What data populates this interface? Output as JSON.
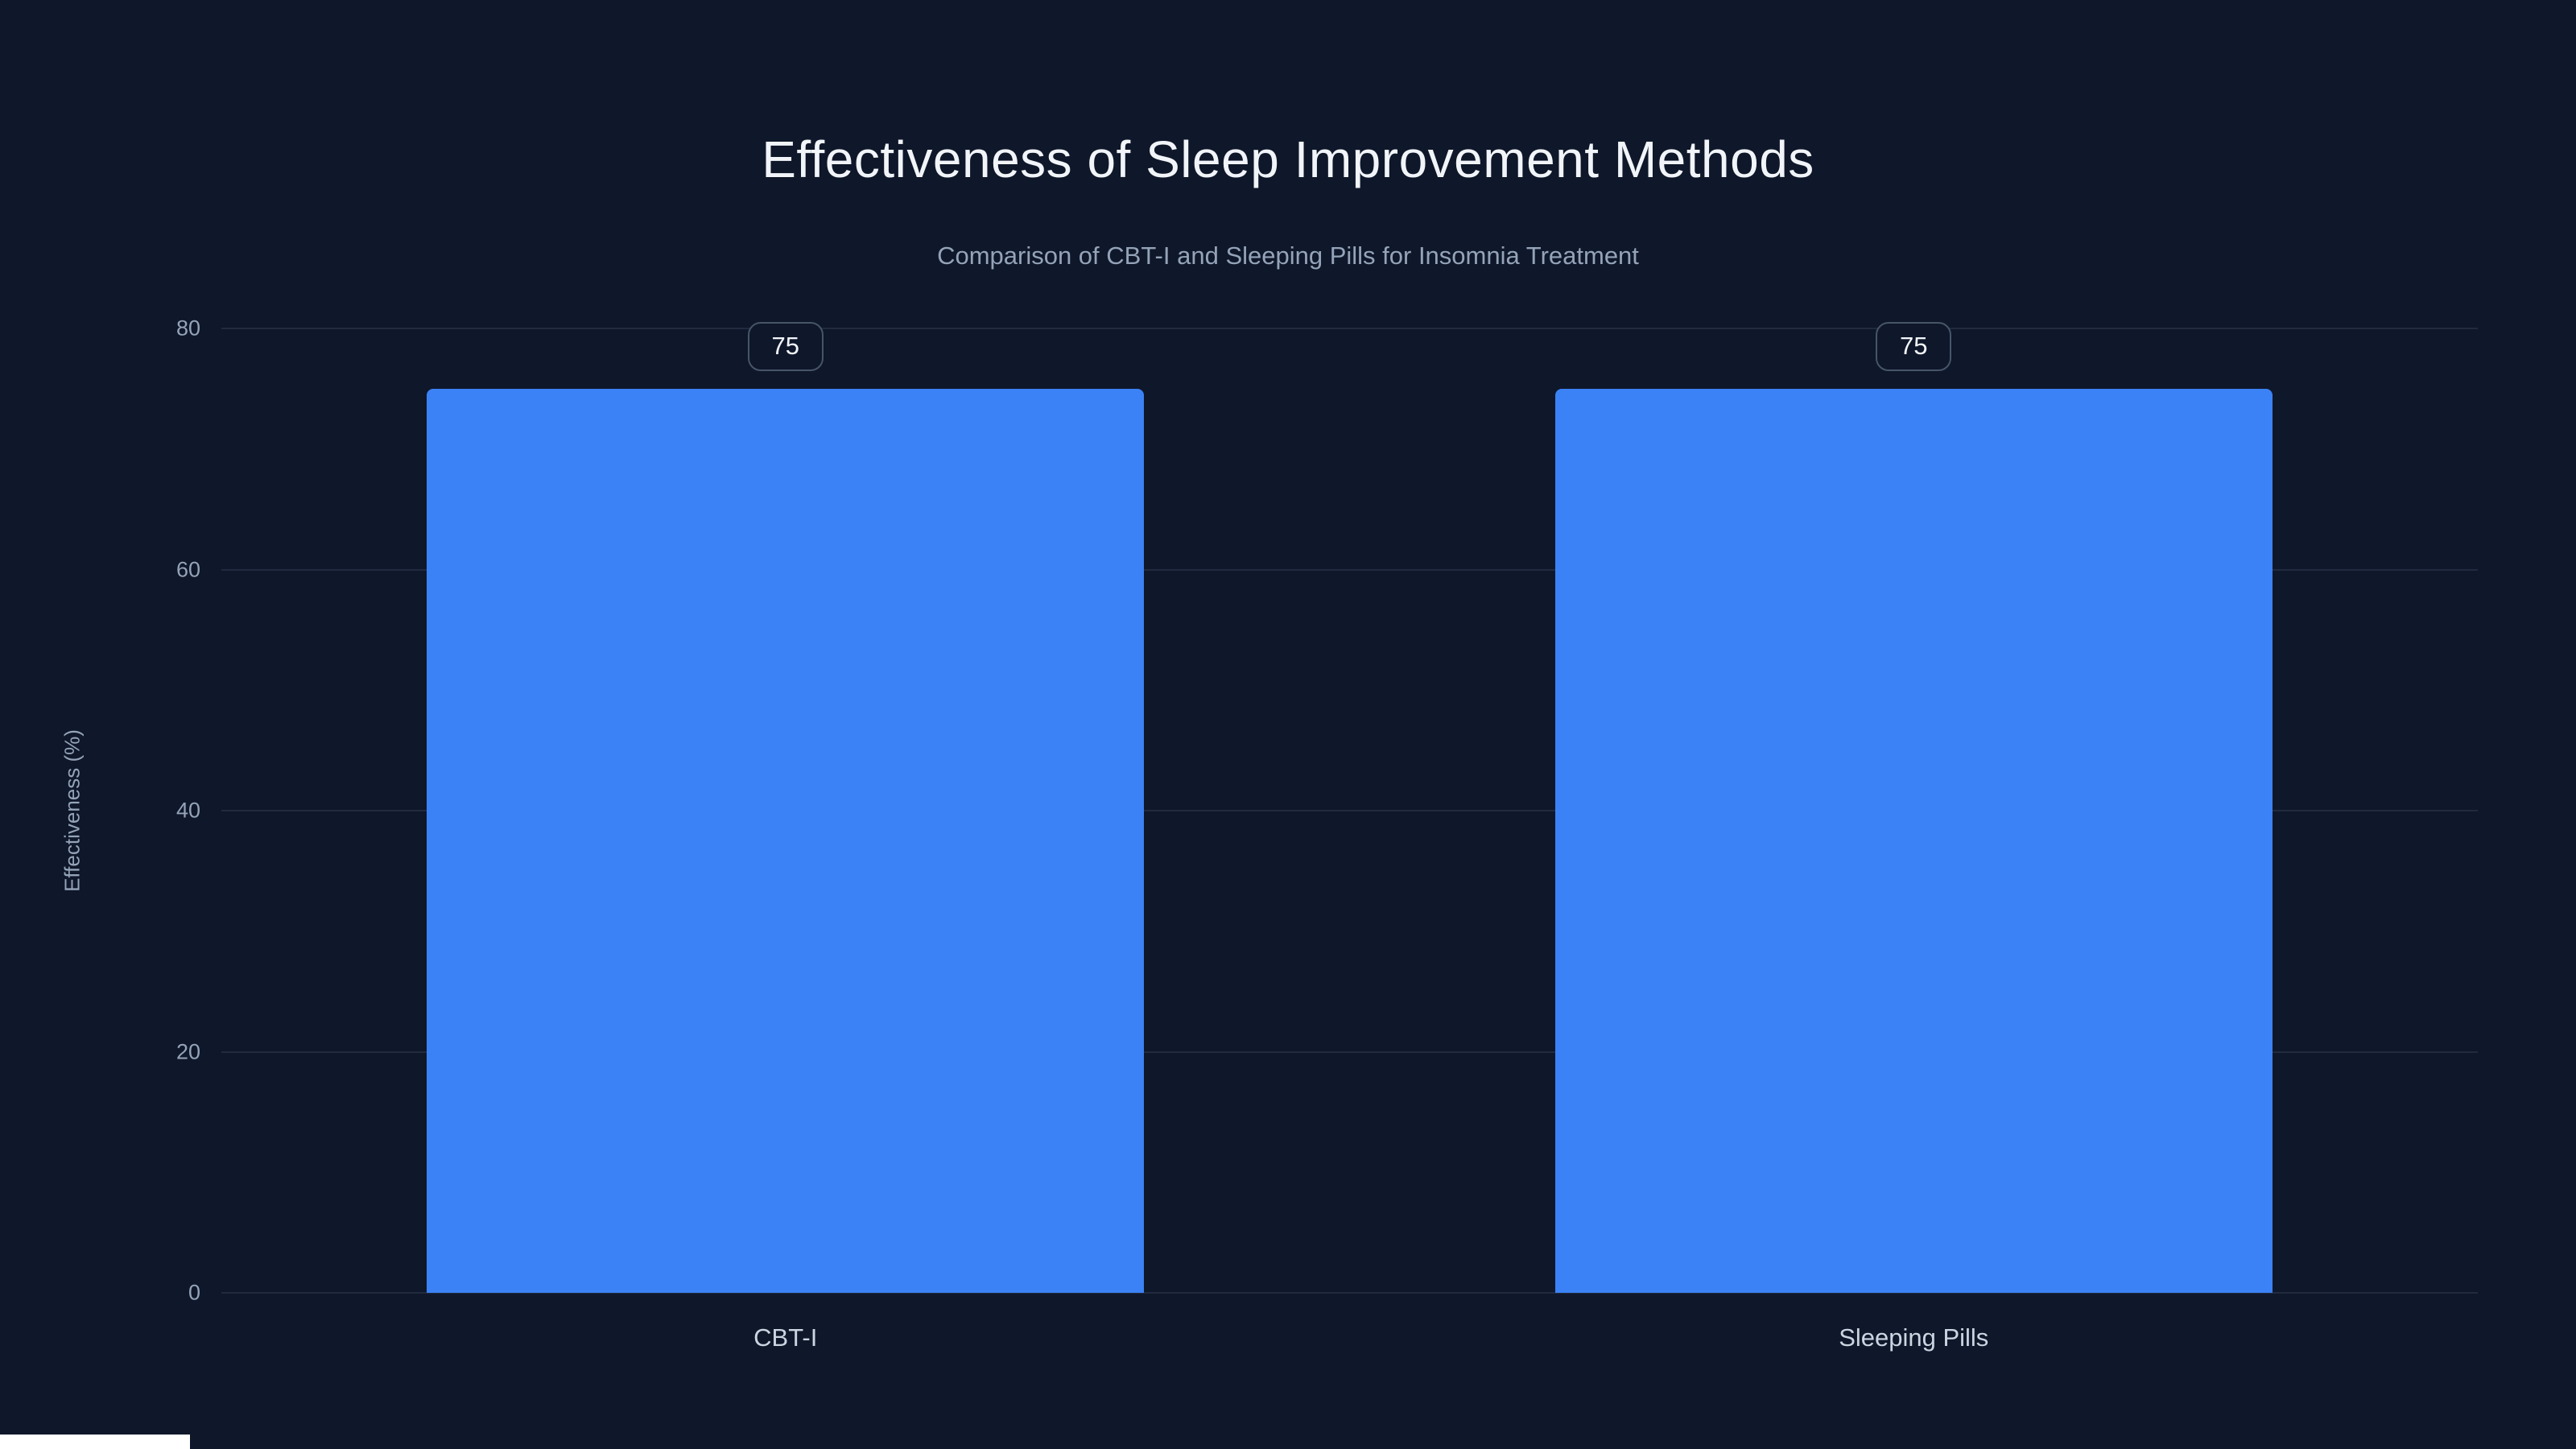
{
  "chart_data": {
    "type": "bar",
    "title": "Effectiveness of Sleep Improvement Methods",
    "subtitle": "Comparison of CBT-I and Sleeping Pills for Insomnia Treatment",
    "categories": [
      "CBT-I",
      "Sleeping Pills"
    ],
    "values": [
      75,
      75
    ],
    "value_labels": [
      "75",
      "75"
    ],
    "xlabel": "",
    "ylabel": "Effectiveness (%)",
    "ylim": [
      0,
      80
    ],
    "yticks": [
      0,
      20,
      40,
      60,
      80
    ],
    "grid": "horizontal",
    "legend": "none",
    "bar_width_fraction": 0.318,
    "colors": {
      "background": "#0f172a",
      "bar": "#3b82f6",
      "grid": "rgba(148,163,184,0.14)",
      "title_text": "#f1f5f9",
      "muted_text": "#94a3b8",
      "category_text": "#cbd5e1",
      "badge_border": "#475569"
    }
  }
}
